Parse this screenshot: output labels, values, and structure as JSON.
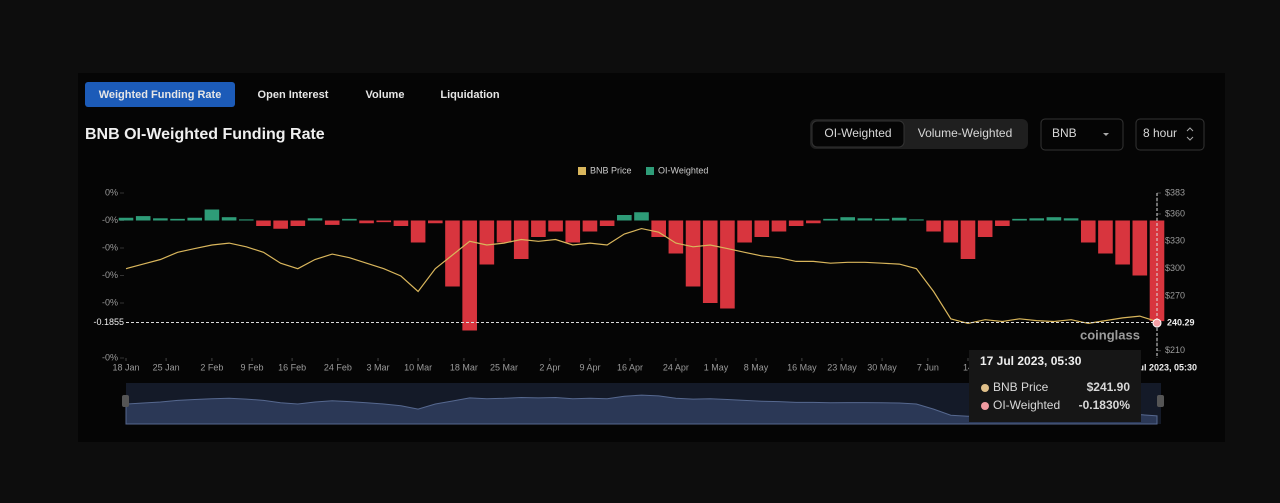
{
  "tabs": [
    "Weighted Funding Rate",
    "Open Interest",
    "Volume",
    "Liquidation"
  ],
  "title": "BNB OI-Weighted Funding Rate",
  "toggle": [
    "OI-Weighted",
    "Volume-Weighted"
  ],
  "selects": [
    "BNB",
    "8 hour"
  ],
  "watermark": "coinglass",
  "tooltip": {
    "date": "17 Jul 2023, 05:30",
    "items": [
      {
        "name": "BNB Price",
        "value": "$241.90"
      },
      {
        "name": "OI-Weighted",
        "value": "-0.1830%"
      }
    ]
  },
  "chart_data": {
    "type": "bar",
    "x": [
      "2023-01-18",
      "2023-01-21",
      "2023-01-24",
      "2023-01-27",
      "2023-01-30",
      "2023-02-02",
      "2023-02-05",
      "2023-02-08",
      "2023-02-11",
      "2023-02-14",
      "2023-02-17",
      "2023-02-20",
      "2023-02-23",
      "2023-02-26",
      "2023-03-01",
      "2023-03-04",
      "2023-03-07",
      "2023-03-10",
      "2023-03-13",
      "2023-03-16",
      "2023-03-19",
      "2023-03-22",
      "2023-03-25",
      "2023-03-28",
      "2023-03-31",
      "2023-04-03",
      "2023-04-06",
      "2023-04-09",
      "2023-04-12",
      "2023-04-15",
      "2023-04-18",
      "2023-04-21",
      "2023-04-24",
      "2023-04-27",
      "2023-04-30",
      "2023-05-03",
      "2023-05-06",
      "2023-05-09",
      "2023-05-12",
      "2023-05-15",
      "2023-05-18",
      "2023-05-21",
      "2023-05-24",
      "2023-05-27",
      "2023-05-30",
      "2023-06-02",
      "2023-06-05",
      "2023-06-08",
      "2023-06-11",
      "2023-06-14",
      "2023-06-17",
      "2023-06-20",
      "2023-06-23",
      "2023-06-26",
      "2023-06-29",
      "2023-07-02",
      "2023-07-05",
      "2023-07-08",
      "2023-07-11",
      "2023-07-14",
      "2023-07-17"
    ],
    "series": [
      {
        "name": "BNB Price",
        "type": "line",
        "axis": "y2",
        "color": "#d9b65c",
        "values": [
          300,
          305,
          310,
          318,
          322,
          326,
          328,
          324,
          318,
          306,
          300,
          310,
          316,
          312,
          306,
          300,
          292,
          275,
          300,
          315,
          330,
          326,
          328,
          332,
          330,
          332,
          326,
          328,
          326,
          338,
          344,
          340,
          328,
          324,
          326,
          322,
          318,
          314,
          312,
          308,
          308,
          306,
          307,
          307,
          306,
          305,
          300,
          275,
          245,
          240,
          244,
          242,
          245,
          243,
          242,
          244,
          240,
          243,
          246,
          248,
          241.9
        ]
      },
      {
        "name": "OI-Weighted",
        "type": "bar",
        "color": "#2e9c78",
        "negative_color": "#d8353e",
        "values": [
          0.005,
          0.008,
          0.004,
          0.003,
          0.005,
          0.02,
          0.006,
          0.002,
          -0.01,
          -0.015,
          -0.01,
          0.004,
          -0.008,
          0.003,
          -0.005,
          -0.003,
          -0.01,
          -0.04,
          -0.005,
          -0.12,
          -0.2,
          -0.08,
          -0.04,
          -0.07,
          -0.03,
          -0.02,
          -0.04,
          -0.02,
          -0.01,
          0.01,
          0.015,
          -0.03,
          -0.06,
          -0.12,
          -0.15,
          -0.16,
          -0.04,
          -0.03,
          -0.02,
          -0.01,
          -0.005,
          0.003,
          0.006,
          0.004,
          0.003,
          0.005,
          0.002,
          -0.02,
          -0.04,
          -0.07,
          -0.03,
          -0.01,
          0.003,
          0.004,
          0.006,
          0.004,
          -0.04,
          -0.06,
          -0.08,
          -0.1,
          -0.183
        ]
      }
    ],
    "xlim": [
      "2023-01-18",
      "2023-07-17"
    ],
    "xticks": [
      {
        "value": "2023-01-18",
        "label": "18 Jan"
      },
      {
        "value": "2023-01-25",
        "label": "25 Jan"
      },
      {
        "value": "2023-02-02",
        "label": "2 Feb"
      },
      {
        "value": "2023-02-09",
        "label": "9 Feb"
      },
      {
        "value": "2023-02-16",
        "label": "16 Feb"
      },
      {
        "value": "2023-02-24",
        "label": "24 Feb"
      },
      {
        "value": "2023-03-03",
        "label": "3 Mar"
      },
      {
        "value": "2023-03-10",
        "label": "10 Mar"
      },
      {
        "value": "2023-03-18",
        "label": "18 Mar"
      },
      {
        "value": "2023-03-25",
        "label": "25 Mar"
      },
      {
        "value": "2023-04-02",
        "label": "2 Apr"
      },
      {
        "value": "2023-04-09",
        "label": "9 Apr"
      },
      {
        "value": "2023-04-16",
        "label": "16 Apr"
      },
      {
        "value": "2023-04-24",
        "label": "24 Apr"
      },
      {
        "value": "2023-05-01",
        "label": "1 May"
      },
      {
        "value": "2023-05-08",
        "label": "8 May"
      },
      {
        "value": "2023-05-16",
        "label": "16 May"
      },
      {
        "value": "2023-05-23",
        "label": "23 May"
      },
      {
        "value": "2023-05-30",
        "label": "30 May"
      },
      {
        "value": "2023-06-07",
        "label": "7 Jun"
      },
      {
        "value": "2023-06-14",
        "label": "14"
      }
    ],
    "ylim": [
      -0.25,
      0.05
    ],
    "yticks": [
      {
        "value": 0.05,
        "label": "0%"
      },
      {
        "value": 0,
        "label": "-0%"
      },
      {
        "value": -0.05,
        "label": "-0%"
      },
      {
        "value": -0.1,
        "label": "-0%"
      },
      {
        "value": -0.15,
        "label": "-0%"
      },
      {
        "value": -0.25,
        "label": "-0%"
      }
    ],
    "y2lim": [
      202,
      383
    ],
    "y2ticks": [
      {
        "value": 383,
        "label": "$383"
      },
      {
        "value": 360,
        "label": "$360"
      },
      {
        "value": 330,
        "label": "$330"
      },
      {
        "value": 300,
        "label": "$300"
      },
      {
        "value": 270,
        "label": "$270"
      },
      {
        "value": 210,
        "label": "$210"
      }
    ],
    "crosshair": {
      "y": -0.1855,
      "y2": 240.29,
      "x_label": "17 Jul 2023, 05:30"
    }
  }
}
